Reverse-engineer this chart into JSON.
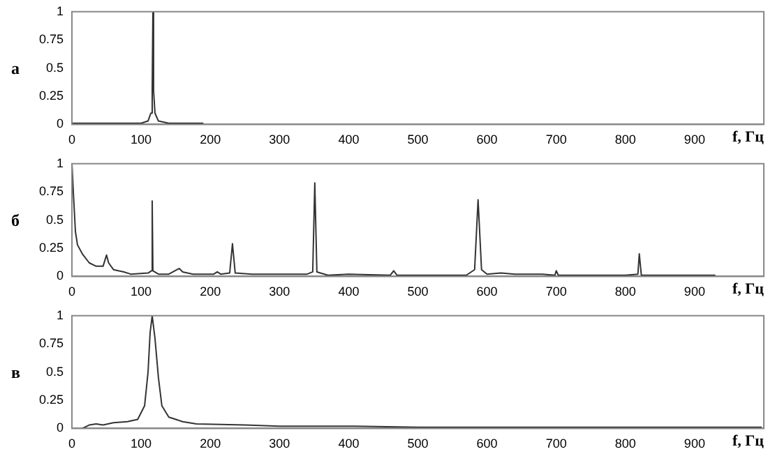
{
  "chart_data": [
    {
      "type": "line",
      "ylabel": "а",
      "xlabel": "f, Гц",
      "color": "#333333",
      "xlim": [
        0,
        1000
      ],
      "xticks": [
        0,
        100,
        200,
        300,
        400,
        500,
        600,
        700,
        800,
        900
      ],
      "ylim": [
        0,
        1
      ],
      "yticks": [
        0,
        0.25,
        0.5,
        0.75,
        1
      ],
      "grid": false,
      "legend": false,
      "marker": "none",
      "x": [
        0,
        100,
        110,
        114,
        116,
        117,
        118,
        120,
        125,
        140,
        190
      ],
      "values": [
        0.01,
        0.01,
        0.03,
        0.1,
        0.3,
        1,
        0.3,
        0.1,
        0.03,
        0.01,
        0.01
      ]
    },
    {
      "type": "line",
      "ylabel": "б",
      "xlabel": "f, Гц",
      "color": "#333333",
      "xlim": [
        0,
        1000
      ],
      "xticks": [
        0,
        100,
        200,
        300,
        400,
        500,
        600,
        700,
        800,
        900
      ],
      "ylim": [
        0,
        1
      ],
      "yticks": [
        0,
        0.25,
        0.5,
        0.75,
        1
      ],
      "grid": false,
      "legend": false,
      "marker": "none",
      "x": [
        0,
        2,
        5,
        8,
        15,
        25,
        35,
        45,
        48,
        50,
        53,
        60,
        75,
        85,
        110,
        115,
        116,
        117,
        125,
        140,
        155,
        160,
        175,
        205,
        210,
        215,
        228,
        232,
        236,
        260,
        300,
        340,
        348,
        351,
        354,
        370,
        400,
        460,
        465,
        470,
        570,
        582,
        587,
        592,
        600,
        620,
        640,
        680,
        698,
        700,
        703,
        800,
        818,
        820,
        823,
        930
      ],
      "values": [
        1,
        0.75,
        0.4,
        0.28,
        0.2,
        0.12,
        0.09,
        0.09,
        0.15,
        0.19,
        0.12,
        0.06,
        0.04,
        0.02,
        0.03,
        0.05,
        0.67,
        0.05,
        0.02,
        0.02,
        0.07,
        0.04,
        0.02,
        0.02,
        0.04,
        0.02,
        0.03,
        0.29,
        0.03,
        0.02,
        0.02,
        0.02,
        0.04,
        0.83,
        0.04,
        0.01,
        0.02,
        0.01,
        0.05,
        0.01,
        0.01,
        0.06,
        0.68,
        0.06,
        0.02,
        0.03,
        0.02,
        0.02,
        0.01,
        0.05,
        0.01,
        0.01,
        0.02,
        0.2,
        0.01,
        0.01
      ]
    },
    {
      "type": "line",
      "ylabel": "в",
      "xlabel": "f, Гц",
      "color": "#333333",
      "xlim": [
        0,
        1000
      ],
      "xticks": [
        0,
        100,
        200,
        300,
        400,
        500,
        600,
        700,
        800,
        900
      ],
      "ylim": [
        0,
        1
      ],
      "yticks": [
        0,
        0.25,
        0.5,
        0.75,
        1
      ],
      "grid": false,
      "legend": false,
      "marker": "none",
      "x": [
        15,
        25,
        35,
        45,
        60,
        80,
        95,
        105,
        110,
        113,
        116,
        120,
        125,
        130,
        140,
        160,
        180,
        250,
        300,
        400,
        500,
        700,
        997
      ],
      "values": [
        0,
        0.03,
        0.04,
        0.03,
        0.05,
        0.06,
        0.08,
        0.2,
        0.5,
        0.85,
        1,
        0.8,
        0.45,
        0.2,
        0.1,
        0.06,
        0.04,
        0.03,
        0.02,
        0.02,
        0.01,
        0.01,
        0.01
      ]
    }
  ]
}
